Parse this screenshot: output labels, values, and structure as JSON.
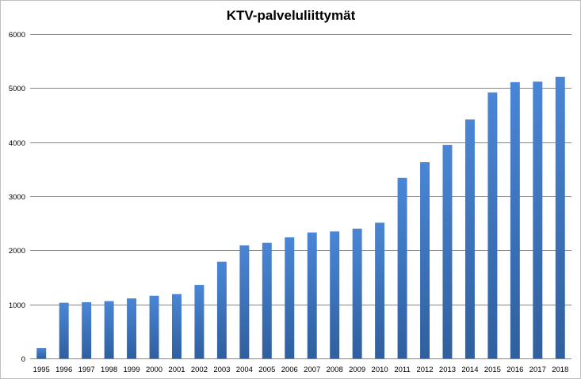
{
  "chart_data": {
    "type": "bar",
    "title": "KTV-palveluliittymät",
    "xlabel": "",
    "ylabel": "",
    "categories": [
      "1995",
      "1996",
      "1997",
      "1998",
      "1999",
      "2000",
      "2001",
      "2002",
      "2003",
      "2004",
      "2005",
      "2006",
      "2007",
      "2008",
      "2009",
      "2010",
      "2011",
      "2012",
      "2013",
      "2014",
      "2015",
      "2016",
      "2017",
      "2018"
    ],
    "values": [
      190,
      1030,
      1040,
      1060,
      1110,
      1160,
      1190,
      1360,
      1790,
      2090,
      2140,
      2240,
      2330,
      2350,
      2400,
      2510,
      3340,
      3630,
      3950,
      4420,
      4920,
      5110,
      5120,
      5210
    ],
    "ylim": [
      0,
      6000
    ],
    "yticks": [
      0,
      1000,
      2000,
      3000,
      4000,
      5000,
      6000
    ],
    "grid": true,
    "legend": "none",
    "colors": {
      "bar_top": "#4a86d6",
      "bar_bottom": "#2f5f9e",
      "grid": "#868686"
    }
  }
}
